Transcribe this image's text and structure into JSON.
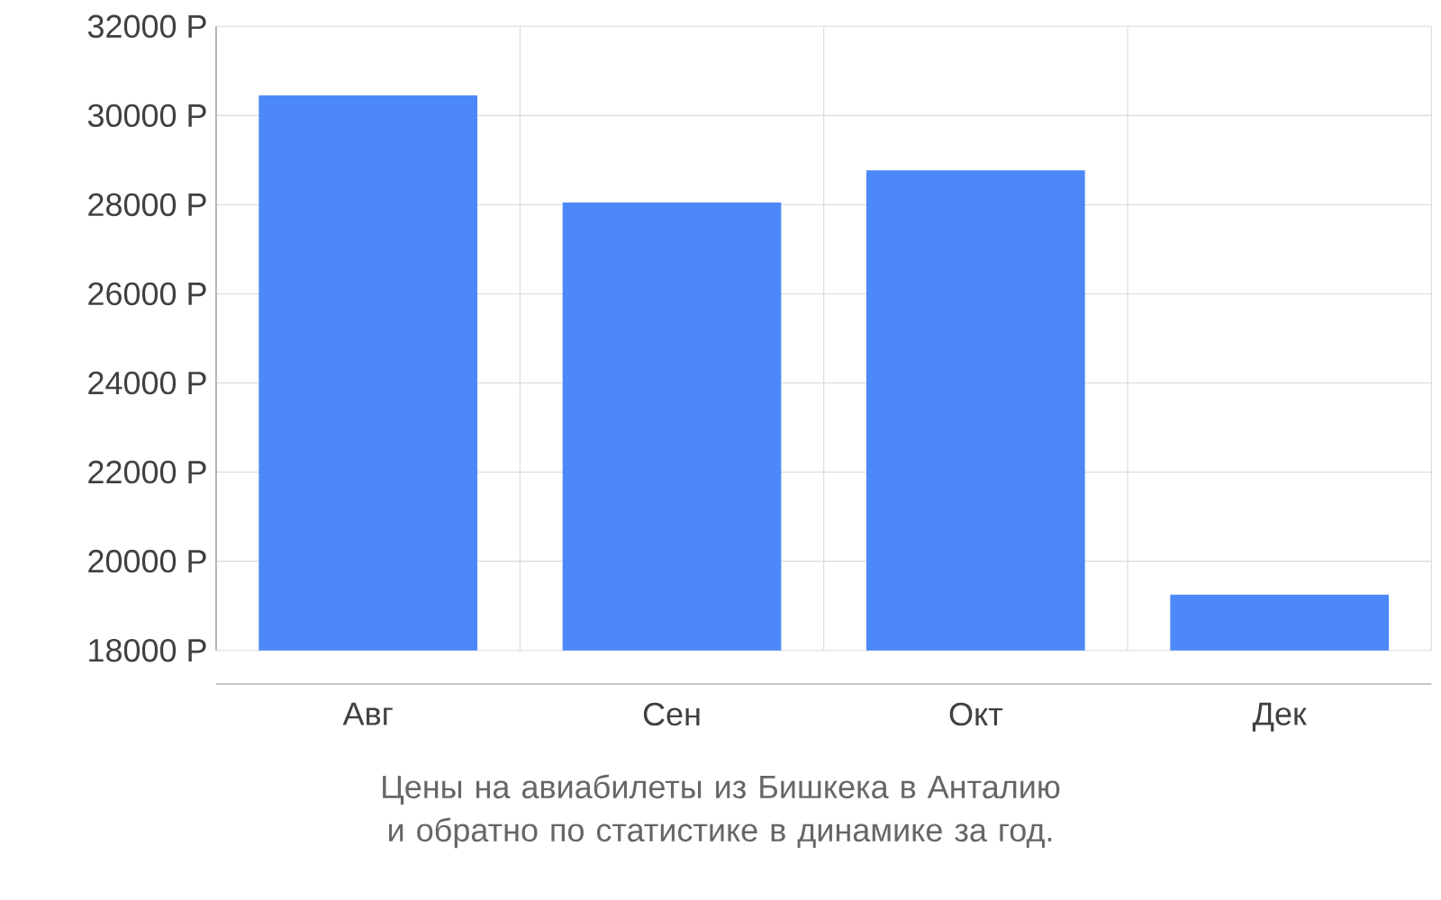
{
  "chart_data": {
    "type": "bar",
    "title": "Цены на авиабилеты из Бишкека в Анталию и обратно по статистике в динамике за год.",
    "categories": [
      "Авг",
      "Сен",
      "Окт",
      "Дек"
    ],
    "values": [
      30450,
      28050,
      28770,
      19250
    ],
    "color": "#4d88f8",
    "ylim": [
      18000,
      32000
    ],
    "yticks": [
      {
        "value": 18000,
        "label": "18000 Р"
      },
      {
        "value": 20000,
        "label": "20000 Р"
      },
      {
        "value": 22000,
        "label": "22000 Р"
      },
      {
        "value": 24000,
        "label": "24000 Р"
      },
      {
        "value": 26000,
        "label": "26000 Р"
      },
      {
        "value": 28000,
        "label": "28000 Р"
      },
      {
        "value": 30000,
        "label": "30000 Р"
      },
      {
        "value": 32000,
        "label": "32000 Р"
      }
    ],
    "grid": true
  }
}
